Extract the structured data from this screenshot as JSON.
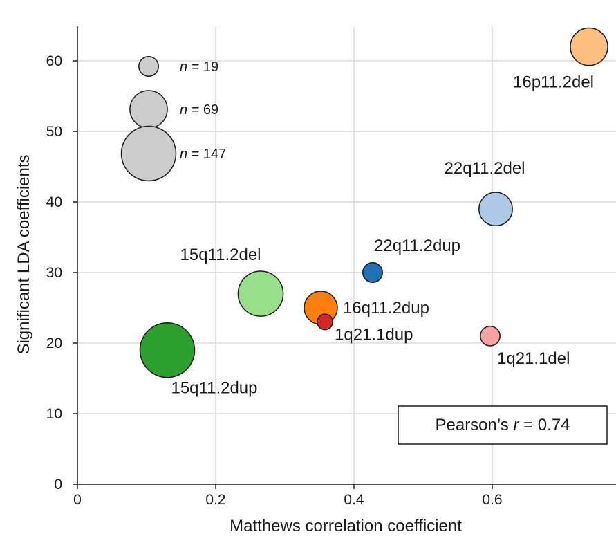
{
  "chart_data": {
    "type": "scatter",
    "xlabel": "Matthews correlation coefficient",
    "ylabel": "Significant LDA coefficients",
    "xlim": [
      0,
      0.78
    ],
    "ylim": [
      0,
      65
    ],
    "x_ticks": [
      0,
      0.2,
      0.4,
      0.6
    ],
    "x_tick_labels": [
      "0",
      "0.2",
      "0.4",
      "0.6"
    ],
    "y_ticks": [
      0,
      10,
      20,
      30,
      40,
      50,
      60
    ],
    "y_tick_labels": [
      "0",
      "10",
      "20",
      "30",
      "40",
      "50",
      "60"
    ],
    "grid": true,
    "points": [
      {
        "label": "16p11.2del",
        "x": 0.74,
        "y": 62,
        "n": 69,
        "color": "#fdbf7f",
        "label_pos": "below-left"
      },
      {
        "label": "22q11.2del",
        "x": 0.605,
        "y": 39,
        "n": 55,
        "color": "#aec8e8",
        "label_pos": "above"
      },
      {
        "label": "22q11.2dup",
        "x": 0.427,
        "y": 30,
        "n": 19,
        "color": "#2171b5",
        "label_pos": "above-right"
      },
      {
        "label": "15q11.2del",
        "x": 0.265,
        "y": 27,
        "n": 100,
        "color": "#98df8a",
        "label_pos": "above-left"
      },
      {
        "label": "16q11.2dup",
        "x": 0.352,
        "y": 25,
        "n": 54,
        "color": "#ff7f0e",
        "label_pos": "right"
      },
      {
        "label": "1q21.1dup",
        "x": 0.358,
        "y": 23,
        "n": 12,
        "color": "#d62728",
        "label_pos": "right"
      },
      {
        "label": "1q21.1del",
        "x": 0.597,
        "y": 21,
        "n": 19,
        "color": "#f7a1a1",
        "label_pos": "below-right"
      },
      {
        "label": "15q11.2dup",
        "x": 0.13,
        "y": 19,
        "n": 147,
        "color": "#2ca02c",
        "label_pos": "below-right"
      }
    ],
    "size_legend": [
      {
        "prefix": "n",
        "text": " = 19",
        "n": 19
      },
      {
        "prefix": "n",
        "text": " = 69",
        "n": 69
      },
      {
        "prefix": "n",
        "text": " = 147",
        "n": 147
      }
    ],
    "size_legend_color": "#cccccc",
    "annotation": {
      "prefix": "Pearson’s ",
      "italic": "r",
      "suffix": " = 0.74"
    }
  }
}
